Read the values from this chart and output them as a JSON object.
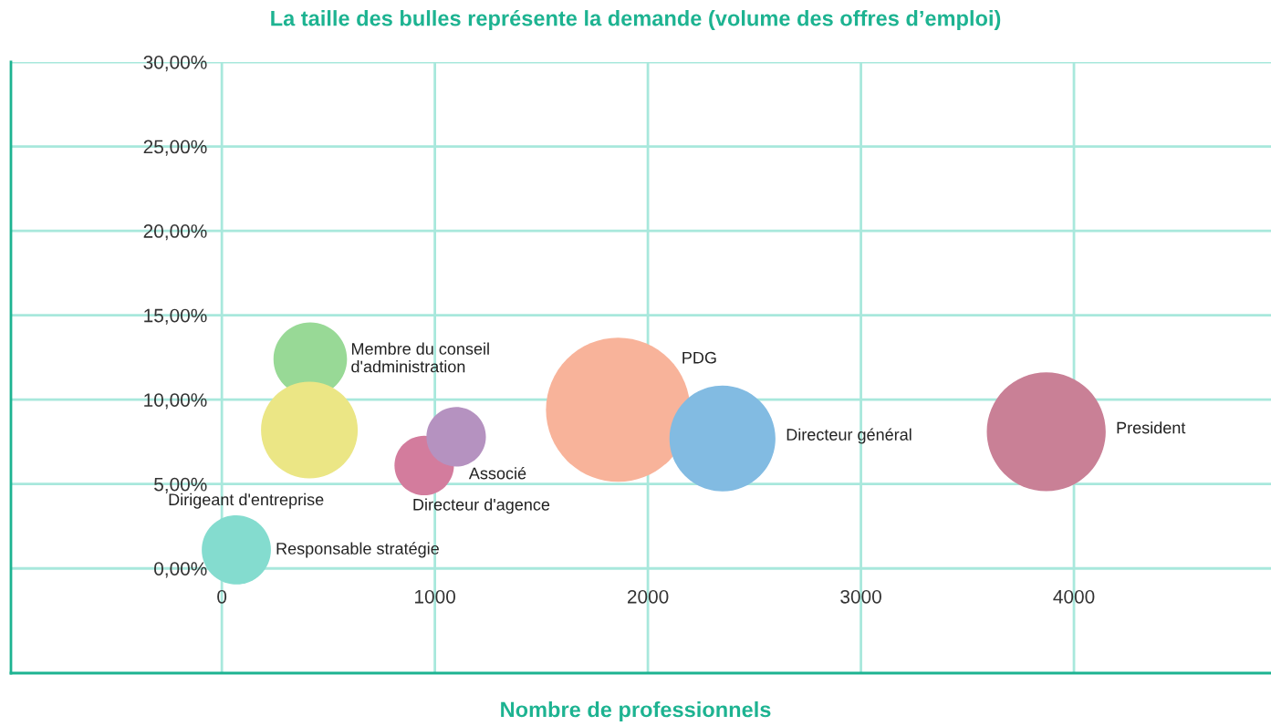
{
  "chart_data": {
    "type": "bubble",
    "title": "La taille des bulles représente la demande (volume des offres d’emploi)",
    "xlabel": "Nombre de professionnels",
    "xlim": [
      -990,
      4925
    ],
    "xticks": [
      0,
      1000,
      2000,
      3000,
      4000
    ],
    "ylim": [
      -6.2,
      30
    ],
    "yticks": [
      {
        "value": 0,
        "label": "0,00%"
      },
      {
        "value": 5,
        "label": "5,00%"
      },
      {
        "value": 10,
        "label": "10,00%"
      },
      {
        "value": 15,
        "label": "15,00%"
      },
      {
        "value": 20,
        "label": "20,00%"
      },
      {
        "value": 25,
        "label": "25,00%"
      },
      {
        "value": 30,
        "label": "30,00%"
      }
    ],
    "grid": true,
    "legend": false,
    "series": [
      {
        "name": "Membre du conseil\nd'administration",
        "color": "#98d996",
        "x": [
          415
        ],
        "values": [
          12.4
        ],
        "sizes": [
          0.26
        ]
      },
      {
        "name": "Dirigeant d'entreprise",
        "color": "#ebe685",
        "x": [
          411
        ],
        "values": [
          8.2
        ],
        "sizes": [
          0.45
        ]
      },
      {
        "name": "Responsable stratégie",
        "color": "#84dccf",
        "x": [
          68
        ],
        "values": [
          1.1
        ],
        "sizes": [
          0.23
        ]
      },
      {
        "name": "Directeur d'agence",
        "color": "#d37c9d",
        "x": [
          950
        ],
        "values": [
          6.1
        ],
        "sizes": [
          0.17
        ]
      },
      {
        "name": "Associé",
        "color": "#b592c0",
        "x": [
          1100
        ],
        "values": [
          7.8
        ],
        "sizes": [
          0.17
        ]
      },
      {
        "name": "PDG",
        "color": "#f8b39a",
        "x": [
          1860
        ],
        "values": [
          9.4
        ],
        "sizes": [
          1
        ]
      },
      {
        "name": "Directeur général",
        "color": "#82bbe2",
        "x": [
          2350
        ],
        "values": [
          7.7
        ],
        "sizes": [
          0.54
        ]
      },
      {
        "name": "President",
        "color": "#c98096",
        "x": [
          3870
        ],
        "values": [
          8.1
        ],
        "sizes": [
          0.68
        ]
      }
    ]
  }
}
